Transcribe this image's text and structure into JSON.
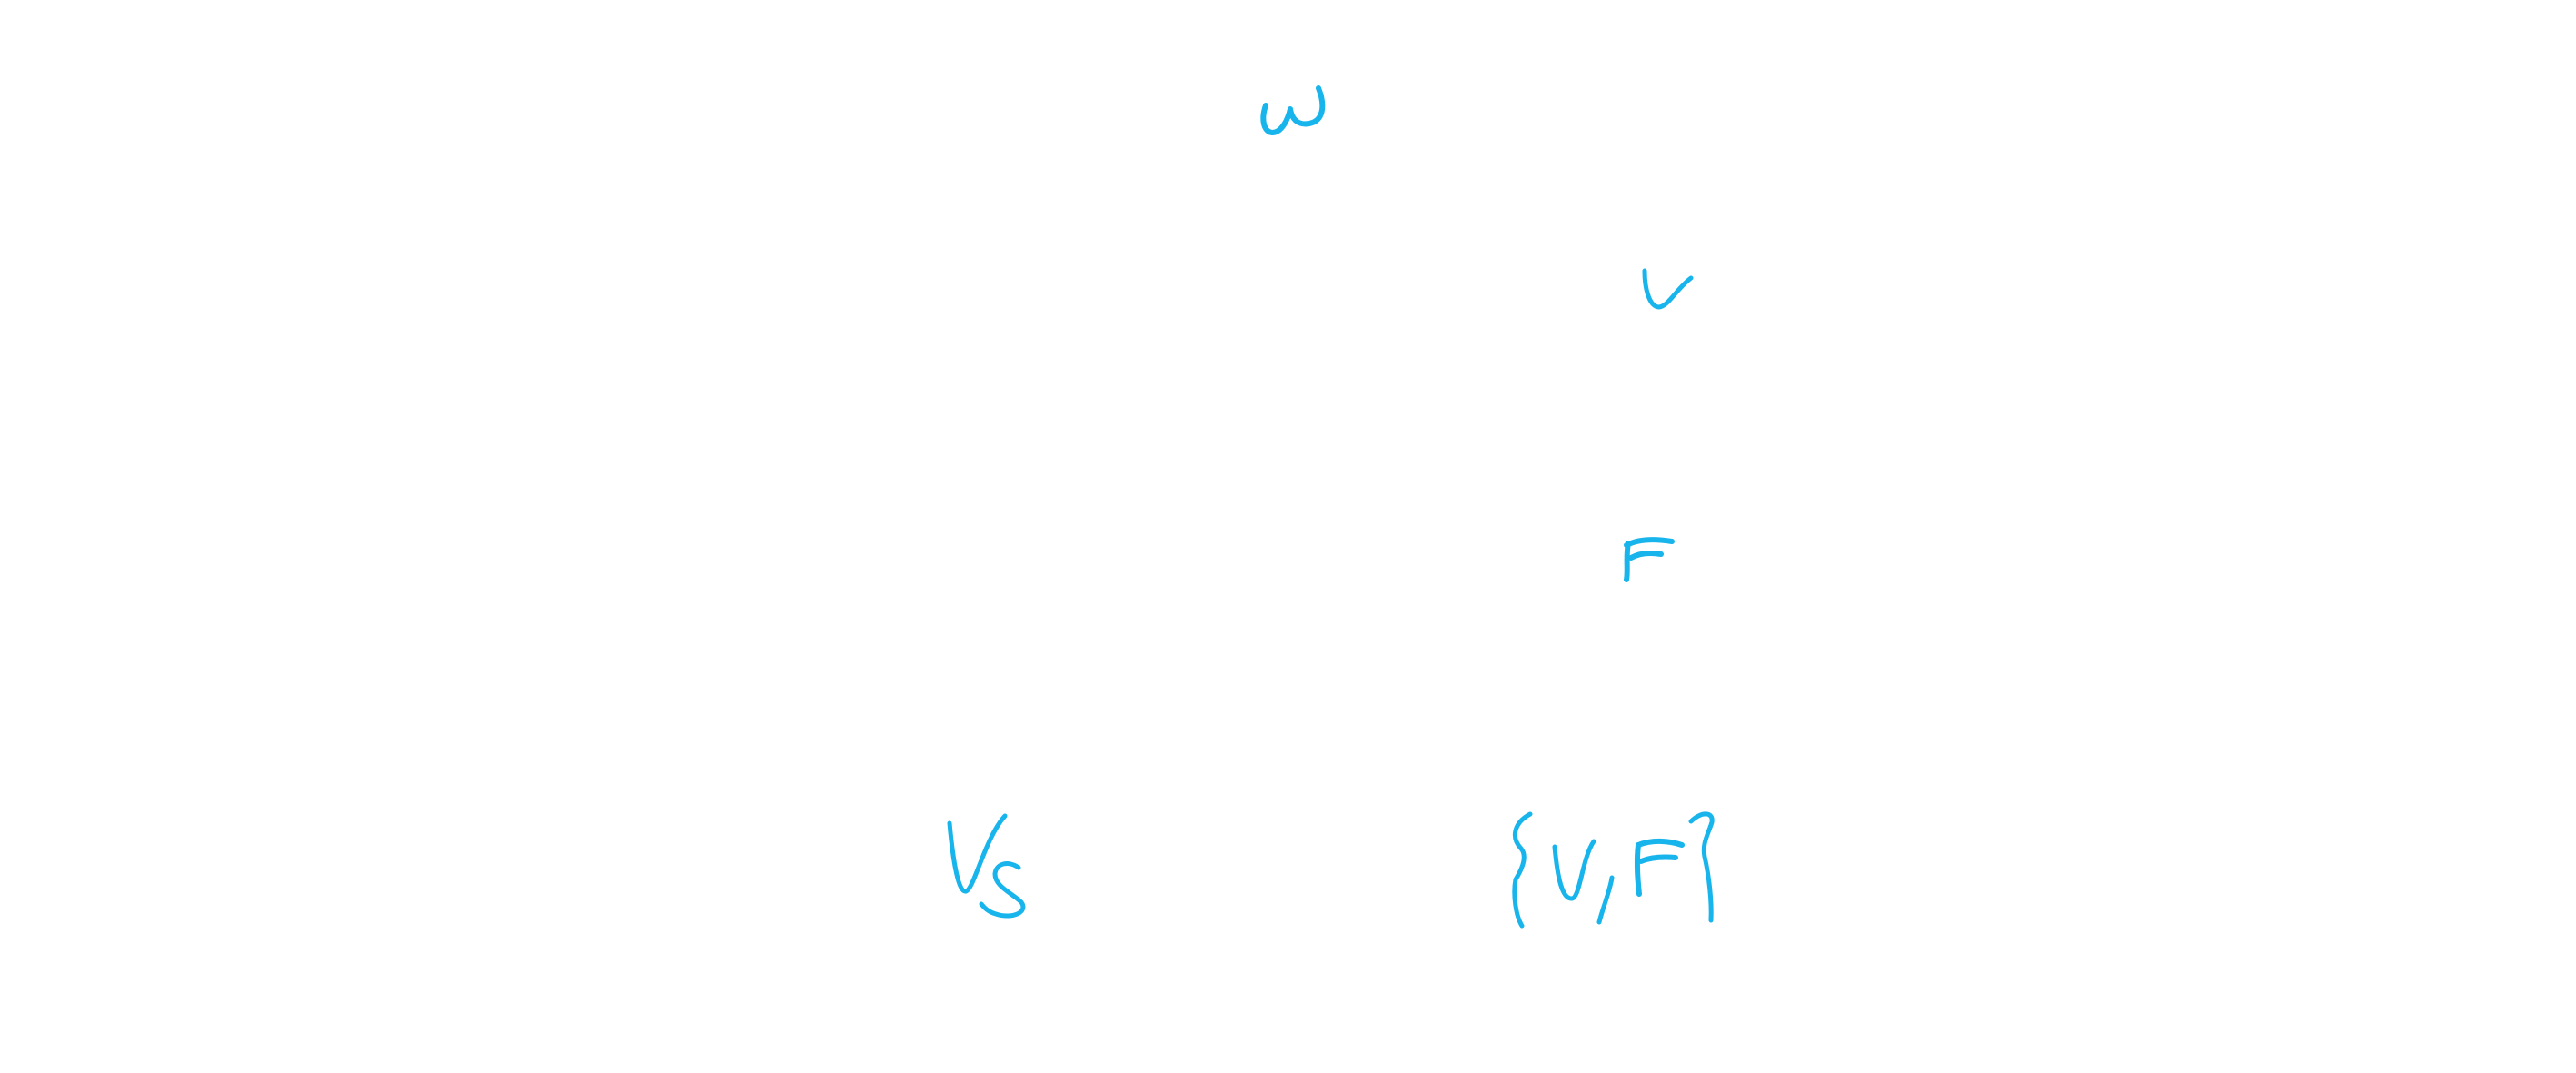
{
  "diagram": {
    "ink_color": "#18b4ec",
    "background_color": "#ffffff",
    "labels": {
      "omega": "ω",
      "v": "v",
      "f": "F",
      "vs": "Vs",
      "set": "{V,F}"
    }
  }
}
